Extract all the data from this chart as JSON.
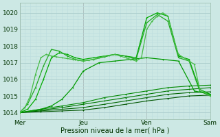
{
  "xlabel": "Pression niveau de la mer( hPa )",
  "background_color": "#cce8e4",
  "grid_major_color": "#aacccc",
  "grid_minor_color": "#bbdddd",
  "xlim": [
    0,
    72
  ],
  "ylim": [
    1013.6,
    1020.6
  ],
  "yticks": [
    1014,
    1015,
    1016,
    1017,
    1018,
    1019,
    1020
  ],
  "xtick_labels": [
    "Mer",
    "Jeu",
    "Ven",
    "Sam"
  ],
  "xtick_positions": [
    0,
    24,
    48,
    72
  ],
  "vline_color": "#bb8888",
  "series": [
    {
      "x": [
        0,
        8,
        16,
        24,
        32,
        40,
        48,
        56,
        64,
        72
      ],
      "y": [
        1014.0,
        1014.05,
        1014.1,
        1014.15,
        1014.3,
        1014.5,
        1014.7,
        1014.85,
        1015.0,
        1015.05
      ],
      "lw": 0.8,
      "color": "#005500",
      "marker": "+"
    },
    {
      "x": [
        0,
        8,
        16,
        24,
        32,
        40,
        48,
        56,
        64,
        72
      ],
      "y": [
        1014.0,
        1014.1,
        1014.2,
        1014.3,
        1014.5,
        1014.7,
        1014.9,
        1015.1,
        1015.2,
        1015.25
      ],
      "lw": 0.8,
      "color": "#006600",
      "marker": "+"
    },
    {
      "x": [
        0,
        8,
        16,
        24,
        32,
        40,
        48,
        56,
        64,
        72
      ],
      "y": [
        1014.0,
        1014.15,
        1014.3,
        1014.5,
        1014.7,
        1014.9,
        1015.1,
        1015.3,
        1015.4,
        1015.5
      ],
      "lw": 0.8,
      "color": "#007700",
      "marker": "+"
    },
    {
      "x": [
        0,
        8,
        16,
        24,
        32,
        40,
        48,
        56,
        64,
        72
      ],
      "y": [
        1014.0,
        1014.2,
        1014.4,
        1014.6,
        1014.9,
        1015.1,
        1015.3,
        1015.5,
        1015.6,
        1015.65
      ],
      "lw": 0.8,
      "color": "#008800",
      "marker": "+"
    },
    {
      "x": [
        0,
        4,
        8,
        12,
        16,
        20,
        24,
        30,
        36,
        42,
        48,
        54,
        60,
        66,
        72
      ],
      "y": [
        1014.0,
        1014.1,
        1014.2,
        1014.4,
        1014.8,
        1015.5,
        1016.5,
        1017.0,
        1017.1,
        1017.2,
        1017.3,
        1017.2,
        1017.1,
        1015.3,
        1015.1
      ],
      "lw": 0.9,
      "color": "#009900",
      "marker": "+"
    },
    {
      "x": [
        0,
        3,
        6,
        9,
        12,
        15,
        18,
        21,
        24,
        28,
        32,
        36,
        40,
        44,
        48,
        52,
        56,
        60,
        64,
        68,
        72
      ],
      "y": [
        1014.0,
        1014.2,
        1014.8,
        1016.0,
        1017.3,
        1017.6,
        1017.5,
        1017.3,
        1017.2,
        1017.3,
        1017.4,
        1017.5,
        1017.4,
        1017.3,
        1019.7,
        1020.0,
        1019.8,
        1017.4,
        1017.2,
        1015.4,
        1015.1
      ],
      "lw": 0.9,
      "color": "#00aa00",
      "marker": "+"
    },
    {
      "x": [
        0,
        3,
        6,
        9,
        12,
        15,
        18,
        21,
        24,
        28,
        32,
        36,
        40,
        44,
        48,
        52,
        56,
        60,
        64,
        68,
        72
      ],
      "y": [
        1014.0,
        1014.5,
        1015.5,
        1016.8,
        1017.8,
        1017.7,
        1017.4,
        1017.2,
        1017.1,
        1017.2,
        1017.35,
        1017.5,
        1017.4,
        1017.2,
        1019.4,
        1019.9,
        1019.5,
        1017.3,
        1017.1,
        1015.3,
        1015.0
      ],
      "lw": 0.9,
      "color": "#22aa22",
      "marker": "+"
    },
    {
      "x": [
        0,
        2,
        4,
        6,
        8,
        10,
        12,
        14,
        16,
        18,
        20,
        22,
        24,
        26,
        28,
        30,
        32,
        34,
        36,
        38,
        40,
        42,
        44,
        46,
        48,
        50,
        52,
        54,
        56,
        58,
        60,
        62,
        64,
        66,
        68,
        70,
        72
      ],
      "y": [
        1014.0,
        1014.3,
        1015.0,
        1016.3,
        1017.3,
        1017.5,
        1017.4,
        1017.35,
        1017.3,
        1017.25,
        1017.2,
        1017.15,
        1017.1,
        1017.15,
        1017.2,
        1017.3,
        1017.4,
        1017.45,
        1017.5,
        1017.4,
        1017.3,
        1017.2,
        1017.1,
        1017.3,
        1019.0,
        1019.5,
        1019.8,
        1020.0,
        1019.8,
        1018.5,
        1017.5,
        1017.3,
        1017.1,
        1016.9,
        1015.4,
        1015.2,
        1015.0
      ],
      "lw": 0.9,
      "color": "#44bb44",
      "marker": "+"
    }
  ]
}
